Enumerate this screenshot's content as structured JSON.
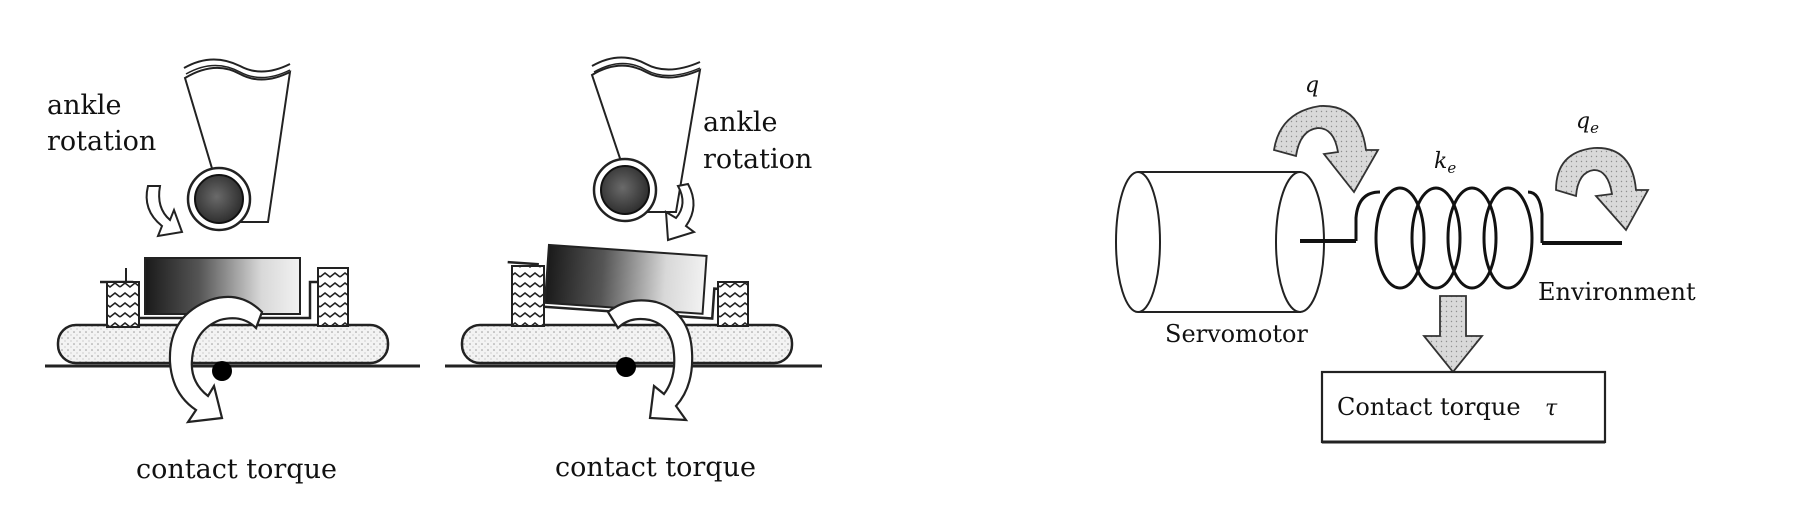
{
  "left_panel": {
    "figure_a": {
      "rotation_label_line1": "ankle",
      "rotation_label_line2": "rotation",
      "torque_label": "contact torque"
    },
    "figure_b": {
      "rotation_label_line1": "ankle",
      "rotation_label_line2": "rotation",
      "torque_label": "contact torque"
    }
  },
  "right_panel": {
    "joint_angle_symbol": "q",
    "stiffness_symbol": "k",
    "stiffness_subscript": "e",
    "env_angle_symbol": "q",
    "env_angle_subscript": "e",
    "servomotor_label": "Servomotor",
    "environment_label": "Environment",
    "contact_torque_label": "Contact torque",
    "torque_symbol": "τ"
  }
}
